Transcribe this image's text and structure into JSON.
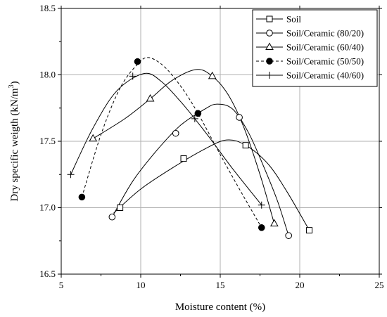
{
  "chart_data": {
    "type": "scatter",
    "xlabel": "Moisture content (%)",
    "ylabel_main": "Dry specific weigth (kN/m",
    "ylabel_sup": "3",
    "ylabel_end": ")",
    "xlim": [
      5,
      25
    ],
    "ylim": [
      16.5,
      18.5
    ],
    "xticks": [
      "5",
      "10",
      "15",
      "20",
      "25"
    ],
    "yticks": [
      "16.5",
      "17.0",
      "17.5",
      "18.0",
      "18.5"
    ],
    "grid": true,
    "legend_position": "top-right",
    "series": [
      {
        "name": "Soil",
        "marker": "square-open",
        "line": "solid",
        "points": [
          [
            8.7,
            17.0
          ],
          [
            12.7,
            17.37
          ],
          [
            16.6,
            17.47
          ],
          [
            20.6,
            16.83
          ]
        ],
        "fit": [
          [
            8.3,
            16.96
          ],
          [
            10,
            17.14
          ],
          [
            12,
            17.3
          ],
          [
            14,
            17.44
          ],
          [
            15.4,
            17.51
          ],
          [
            16.6,
            17.47
          ],
          [
            18,
            17.33
          ],
          [
            19.2,
            17.12
          ],
          [
            20.6,
            16.83
          ]
        ]
      },
      {
        "name": "Soil/Ceramic (80/20)",
        "marker": "circle-open",
        "line": "solid",
        "points": [
          [
            8.2,
            16.93
          ],
          [
            12.2,
            17.56
          ],
          [
            16.2,
            17.68
          ],
          [
            19.3,
            16.79
          ]
        ],
        "fit": [
          [
            8.2,
            16.93
          ],
          [
            9.5,
            17.2
          ],
          [
            11,
            17.43
          ],
          [
            12.5,
            17.62
          ],
          [
            14,
            17.74
          ],
          [
            14.8,
            17.78
          ],
          [
            15.8,
            17.74
          ],
          [
            16.8,
            17.56
          ],
          [
            17.8,
            17.29
          ],
          [
            18.6,
            17.05
          ],
          [
            19.3,
            16.79
          ]
        ]
      },
      {
        "name": "Soil/Ceramic (60/40)",
        "marker": "triangle-open",
        "line": "solid",
        "points": [
          [
            7.0,
            17.52
          ],
          [
            10.6,
            17.82
          ],
          [
            14.5,
            17.99
          ],
          [
            18.4,
            16.88
          ]
        ],
        "fit": [
          [
            7.0,
            17.52
          ],
          [
            9,
            17.67
          ],
          [
            10.6,
            17.82
          ],
          [
            12,
            17.96
          ],
          [
            13.5,
            18.04
          ],
          [
            14.5,
            17.99
          ],
          [
            15.5,
            17.85
          ],
          [
            16.5,
            17.6
          ],
          [
            17.5,
            17.25
          ],
          [
            18.4,
            16.88
          ]
        ]
      },
      {
        "name": "Soil/Ceramic (50/50)",
        "marker": "circle-filled",
        "line": "dashed",
        "points": [
          [
            6.3,
            17.08
          ],
          [
            9.8,
            18.1
          ],
          [
            13.6,
            17.71
          ],
          [
            17.6,
            16.85
          ]
        ],
        "fit": [
          [
            6.3,
            17.08
          ],
          [
            7.5,
            17.55
          ],
          [
            8.7,
            17.9
          ],
          [
            9.8,
            18.08
          ],
          [
            10.5,
            18.13
          ],
          [
            11.5,
            18.06
          ],
          [
            12.6,
            17.9
          ],
          [
            13.6,
            17.71
          ],
          [
            15,
            17.4
          ],
          [
            16.3,
            17.12
          ],
          [
            17.6,
            16.85
          ]
        ]
      },
      {
        "name": "Soil/Ceramic (40/60)",
        "marker": "plus",
        "line": "solid",
        "points": [
          [
            5.6,
            17.25
          ],
          [
            9.5,
            17.99
          ],
          [
            13.4,
            17.67
          ],
          [
            17.6,
            17.02
          ]
        ],
        "fit": [
          [
            5.6,
            17.25
          ],
          [
            7,
            17.6
          ],
          [
            8.5,
            17.88
          ],
          [
            10.2,
            18.01
          ],
          [
            11.3,
            17.95
          ],
          [
            12.5,
            17.8
          ],
          [
            13.4,
            17.67
          ],
          [
            14.5,
            17.5
          ],
          [
            15.8,
            17.29
          ],
          [
            17.6,
            17.02
          ]
        ]
      }
    ]
  }
}
